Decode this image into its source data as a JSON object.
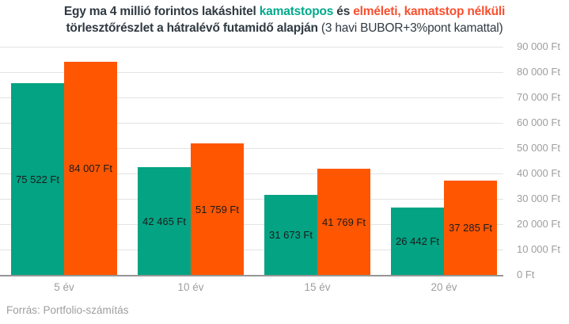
{
  "colors": {
    "green_bar": "#03a383",
    "orange_bar": "#ff5602",
    "title_dark": "#303a42",
    "title_green": "#00a98c",
    "title_orange": "#f94f2e",
    "value_label": "#1b1b1b",
    "axis_label_gray": "#9e9e9e",
    "gridline": "#e3e3e3",
    "axis_line": "#969696"
  },
  "title": {
    "lines": [
      [
        {
          "text": "Egy ma 4 millió forintos lakáshitel ",
          "color": "title_dark",
          "bold": true
        },
        {
          "text": "kamatstopos",
          "color": "title_green",
          "bold": true
        },
        {
          "text": " és ",
          "color": "title_dark",
          "bold": true
        },
        {
          "text": "elméleti, kamatstop nélküli",
          "color": "title_orange",
          "bold": true
        }
      ],
      [
        {
          "text": "törlesztőrészlet a hátralévő futamidő alapján ",
          "color": "title_dark",
          "bold": true
        },
        {
          "text": "(3 havi BUBOR+3%pont kamattal)",
          "color": "title_dark",
          "bold": false
        }
      ]
    ]
  },
  "chart_data": {
    "type": "bar",
    "categories": [
      "5 év",
      "10 év",
      "15 év",
      "20 év"
    ],
    "series": [
      {
        "name": "kamatstopos",
        "color_key": "green_bar",
        "values": [
          75522,
          42465,
          31673,
          26442
        ],
        "labels": [
          "75 522 Ft",
          "42 465 Ft",
          "31 673 Ft",
          "26 442 Ft"
        ]
      },
      {
        "name": "elméleti, kamatstop nélküli",
        "color_key": "orange_bar",
        "values": [
          84007,
          51759,
          41769,
          37285
        ],
        "labels": [
          "84 007 Ft",
          "51 759 Ft",
          "41 769 Ft",
          "37 285 Ft"
        ]
      }
    ],
    "ylim": [
      0,
      90000
    ],
    "ytick_step": 10000,
    "ytick_labels": [
      "0 Ft",
      "10 000 Ft",
      "20 000 Ft",
      "30 000 Ft",
      "40 000 Ft",
      "50 000 Ft",
      "60 000 Ft",
      "70 000 Ft",
      "80 000 Ft",
      "90 000 Ft"
    ],
    "grid": "horizontal",
    "legend_position": "in-title",
    "value_labels_position": "inside-center"
  },
  "footer": {
    "source": "Forrás: Portfolio-számítás"
  }
}
